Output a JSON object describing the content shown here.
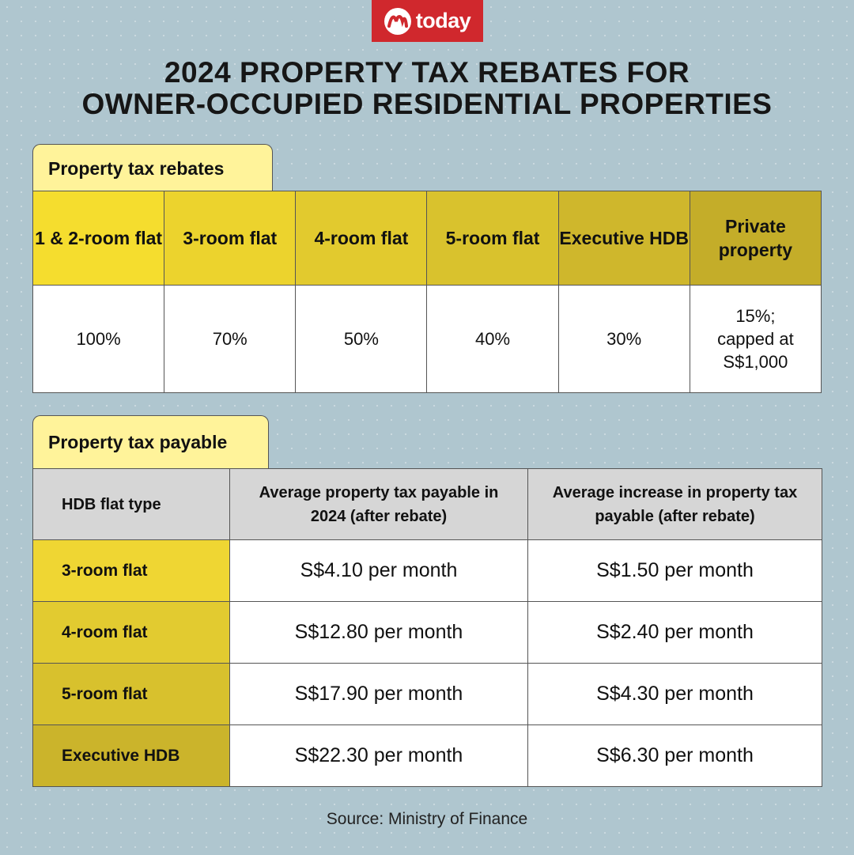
{
  "brand": {
    "name": "today",
    "color": "#d0282d"
  },
  "headline": {
    "line1": "2024 PROPERTY TAX REBATES FOR",
    "line2": "OWNER-OCCUPIED RESIDENTIAL PROPERTIES"
  },
  "rebates": {
    "section_title": "Property tax rebates",
    "columns": [
      {
        "label": "1 & 2-room flat",
        "value": "100%",
        "color": "#f5dd2e"
      },
      {
        "label": "3-room flat",
        "value": "70%",
        "color": "#ecd32d"
      },
      {
        "label": "4-room flat",
        "value": "50%",
        "color": "#e2ca2e"
      },
      {
        "label": "5-room flat",
        "value": "40%",
        "color": "#d9c22d"
      },
      {
        "label": "Executive HDB",
        "value": "30%",
        "color": "#cfb72c"
      },
      {
        "label": "Private property",
        "value": "15%; capped at S$1,000",
        "color": "#c4ad29"
      }
    ]
  },
  "payable": {
    "section_title": "Property tax payable",
    "headers": [
      "HDB flat type",
      "Average property tax payable in 2024 (after rebate)",
      "Average increase in property tax payable (after rebate)"
    ],
    "rows": [
      {
        "type": "3-room flat",
        "payable": "S$4.10 per month",
        "increase": "S$1.50 per month",
        "color": "#efd633"
      },
      {
        "type": "4-room flat",
        "payable": "S$12.80 per month",
        "increase": "S$2.40 per month",
        "color": "#e2cb30"
      },
      {
        "type": "5-room flat",
        "payable": "S$17.90 per month",
        "increase": "S$4.30 per month",
        "color": "#d8c12d"
      },
      {
        "type": "Executive HDB",
        "payable": "S$22.30 per month",
        "increase": "S$6.30 per month",
        "color": "#cbb42b"
      }
    ]
  },
  "source": "Source: Ministry of Finance"
}
